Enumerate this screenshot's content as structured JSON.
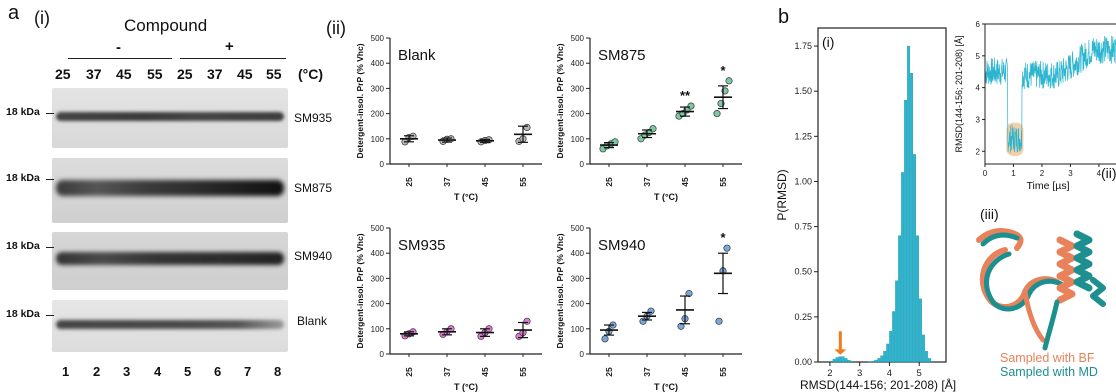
{
  "panel_a": {
    "letter": "a",
    "sub_i": "(i)",
    "sub_ii": "(ii)",
    "compound_label": "Compound",
    "minus": "-",
    "plus": "+",
    "temps": [
      "25",
      "37",
      "45",
      "55",
      "25",
      "37",
      "45",
      "55"
    ],
    "temp_unit": "(°C)",
    "kda": "18 kDa",
    "blots": [
      "SM935",
      "SM875",
      "SM940",
      "Blank"
    ],
    "lanes": [
      "1",
      "2",
      "3",
      "4",
      "5",
      "6",
      "7",
      "8"
    ]
  },
  "chart_data": [
    {
      "type": "scatter",
      "title": "Blank",
      "xlabel": "T (°C)",
      "ylabel": "Detergent-insol. PrP (% Vhc)",
      "categories": [
        "25",
        "37",
        "45",
        "55"
      ],
      "ylim": [
        0,
        500
      ],
      "yticks": [
        "0",
        "100",
        "200",
        "300",
        "400",
        "500"
      ],
      "means": [
        100,
        95,
        92,
        118
      ],
      "sem": [
        12,
        8,
        6,
        32
      ],
      "points": [
        [
          88,
          105,
          110
        ],
        [
          90,
          98,
          100
        ],
        [
          88,
          93,
          96
        ],
        [
          90,
          100,
          145
        ]
      ],
      "point_color": "#b7b7b7",
      "significance": [
        "",
        "",
        "",
        ""
      ]
    },
    {
      "type": "scatter",
      "title": "SM875",
      "xlabel": "T (°C)",
      "ylabel": "Detergent-insol. PrP (% Vhc)",
      "categories": [
        "25",
        "37",
        "45",
        "55"
      ],
      "ylim": [
        0,
        500
      ],
      "yticks": [
        "0",
        "100",
        "200",
        "300",
        "400",
        "500"
      ],
      "means": [
        75,
        120,
        208,
        265
      ],
      "sem": [
        10,
        15,
        18,
        45
      ],
      "points": [
        [
          60,
          72,
          80,
          88
        ],
        [
          100,
          115,
          125,
          140
        ],
        [
          190,
          200,
          215,
          230
        ],
        [
          200,
          240,
          290,
          330
        ]
      ],
      "point_color": "#7cc9a3",
      "significance": [
        "",
        "",
        "**",
        "*"
      ]
    },
    {
      "type": "scatter",
      "title": "SM935",
      "xlabel": "T (°C)",
      "ylabel": "Detergent-insol. PrP (% Vhc)",
      "categories": [
        "25",
        "37",
        "45",
        "55"
      ],
      "ylim": [
        0,
        500
      ],
      "yticks": [
        "0",
        "100",
        "200",
        "300",
        "400",
        "500"
      ],
      "means": [
        80,
        88,
        85,
        95
      ],
      "sem": [
        8,
        12,
        15,
        30
      ],
      "points": [
        [
          72,
          80,
          88
        ],
        [
          78,
          88,
          100
        ],
        [
          70,
          85,
          100
        ],
        [
          70,
          85,
          130
        ]
      ],
      "point_color": "#e07ad6",
      "significance": [
        "",
        "",
        "",
        ""
      ]
    },
    {
      "type": "scatter",
      "title": "SM940",
      "xlabel": "T (°C)",
      "ylabel": "Detergent-insol. PrP (% Vhc)",
      "categories": [
        "25",
        "37",
        "45",
        "55"
      ],
      "ylim": [
        0,
        500
      ],
      "yticks": [
        "0",
        "100",
        "200",
        "300",
        "400",
        "500"
      ],
      "means": [
        95,
        150,
        175,
        320
      ],
      "sem": [
        20,
        15,
        55,
        80
      ],
      "points": [
        [
          60,
          90,
          115
        ],
        [
          130,
          150,
          170
        ],
        [
          110,
          140,
          240
        ],
        [
          130,
          330,
          420
        ]
      ],
      "point_color": "#7aa8dd",
      "significance": [
        "",
        "",
        "",
        "*"
      ]
    },
    {
      "type": "bar",
      "title": "",
      "xlabel": "RMSD(144-156; 201-208) [Å]",
      "ylabel": "P(RMSD)",
      "xlim": [
        1.6,
        5.9
      ],
      "ylim": [
        0,
        1.85
      ],
      "xticks": [
        "2",
        "3",
        "4",
        "5"
      ],
      "yticks": [
        "0.00",
        "0.25",
        "0.50",
        "0.75",
        "1.00",
        "1.25",
        "1.50",
        "1.75"
      ],
      "bars": [
        [
          2.05,
          0.005
        ],
        [
          2.15,
          0.015
        ],
        [
          2.25,
          0.025
        ],
        [
          2.35,
          0.03
        ],
        [
          2.45,
          0.03
        ],
        [
          2.55,
          0.02
        ],
        [
          2.65,
          0.01
        ],
        [
          2.75,
          0.005
        ],
        [
          3.35,
          0.002
        ],
        [
          3.45,
          0.005
        ],
        [
          3.55,
          0.01
        ],
        [
          3.65,
          0.02
        ],
        [
          3.75,
          0.035
        ],
        [
          3.85,
          0.06
        ],
        [
          3.95,
          0.1
        ],
        [
          4.05,
          0.17
        ],
        [
          4.15,
          0.28
        ],
        [
          4.25,
          0.45
        ],
        [
          4.35,
          0.7
        ],
        [
          4.45,
          1.05
        ],
        [
          4.55,
          1.45
        ],
        [
          4.65,
          1.75
        ],
        [
          4.75,
          1.6
        ],
        [
          4.85,
          1.15
        ],
        [
          4.95,
          0.7
        ],
        [
          5.05,
          0.35
        ],
        [
          5.15,
          0.15
        ],
        [
          5.25,
          0.06
        ],
        [
          5.35,
          0.02
        ],
        [
          5.45,
          0.005
        ]
      ],
      "bar_color": "#2bb5cf",
      "arrow_color": "#f07c1c"
    },
    {
      "type": "line",
      "title": "",
      "xlabel": "Time [µs]",
      "ylabel": "RMSD(144-156; 201-208) [Å]",
      "xlim": [
        0,
        4.6
      ],
      "ylim": [
        1.6,
        6
      ],
      "xticks": [
        "0",
        "1",
        "2",
        "3",
        "4"
      ],
      "yticks": [
        "2",
        "3",
        "4",
        "5",
        "6"
      ],
      "line_color": "#2bb5cf",
      "highlight_color": "#f5cfa7"
    }
  ],
  "panel_b": {
    "letter": "b",
    "sub_i": "(i)",
    "sub_ii": "(ii)",
    "sub_iii": "(iii)",
    "legend_bf": "Sampled with BF",
    "legend_md": "Sampled with MD",
    "bf_color": "#e8825a",
    "md_color": "#1d8f8f"
  }
}
